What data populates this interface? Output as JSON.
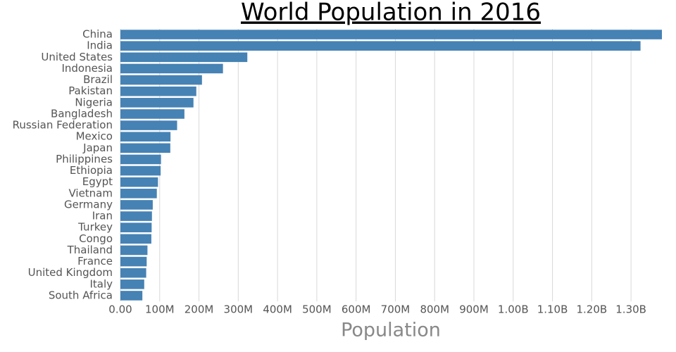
{
  "chart_data": {
    "type": "hbar",
    "title": "World Population in 2016",
    "x_label": "Population",
    "categories": [
      "China",
      "India",
      "United States",
      "Indonesia",
      "Brazil",
      "Pakistan",
      "Nigeria",
      "Bangladesh",
      "Russian Federation",
      "Mexico",
      "Japan",
      "Philippines",
      "Ethiopia",
      "Egypt",
      "Vietnam",
      "Germany",
      "Iran",
      "Turkey",
      "Congo",
      "Thailand",
      "France",
      "United Kingdom",
      "Italy",
      "South Africa"
    ],
    "values": [
      1378665000,
      1324171000,
      323128000,
      261115000,
      207653000,
      193203000,
      185990000,
      162952000,
      144342000,
      127540000,
      126995000,
      103320000,
      102403000,
      95689000,
      92701000,
      82349000,
      80277000,
      79512000,
      78736000,
      68864000,
      66896000,
      65637000,
      60600000,
      55909000
    ],
    "color": "#4682b4",
    "xlim": [
      0,
      1378665000
    ],
    "xticks": [
      {
        "value": 0,
        "label": "0.00"
      },
      {
        "value": 100000000,
        "label": "100M"
      },
      {
        "value": 200000000,
        "label": "200M"
      },
      {
        "value": 300000000,
        "label": "300M"
      },
      {
        "value": 400000000,
        "label": "400M"
      },
      {
        "value": 500000000,
        "label": "500M"
      },
      {
        "value": 600000000,
        "label": "600M"
      },
      {
        "value": 700000000,
        "label": "700M"
      },
      {
        "value": 800000000,
        "label": "800M"
      },
      {
        "value": 900000000,
        "label": "900M"
      },
      {
        "value": 1000000000,
        "label": "1.00B"
      },
      {
        "value": 1100000000,
        "label": "1.10B"
      },
      {
        "value": 1200000000,
        "label": "1.20B"
      },
      {
        "value": 1300000000,
        "label": "1.30B"
      }
    ],
    "grid": true
  }
}
